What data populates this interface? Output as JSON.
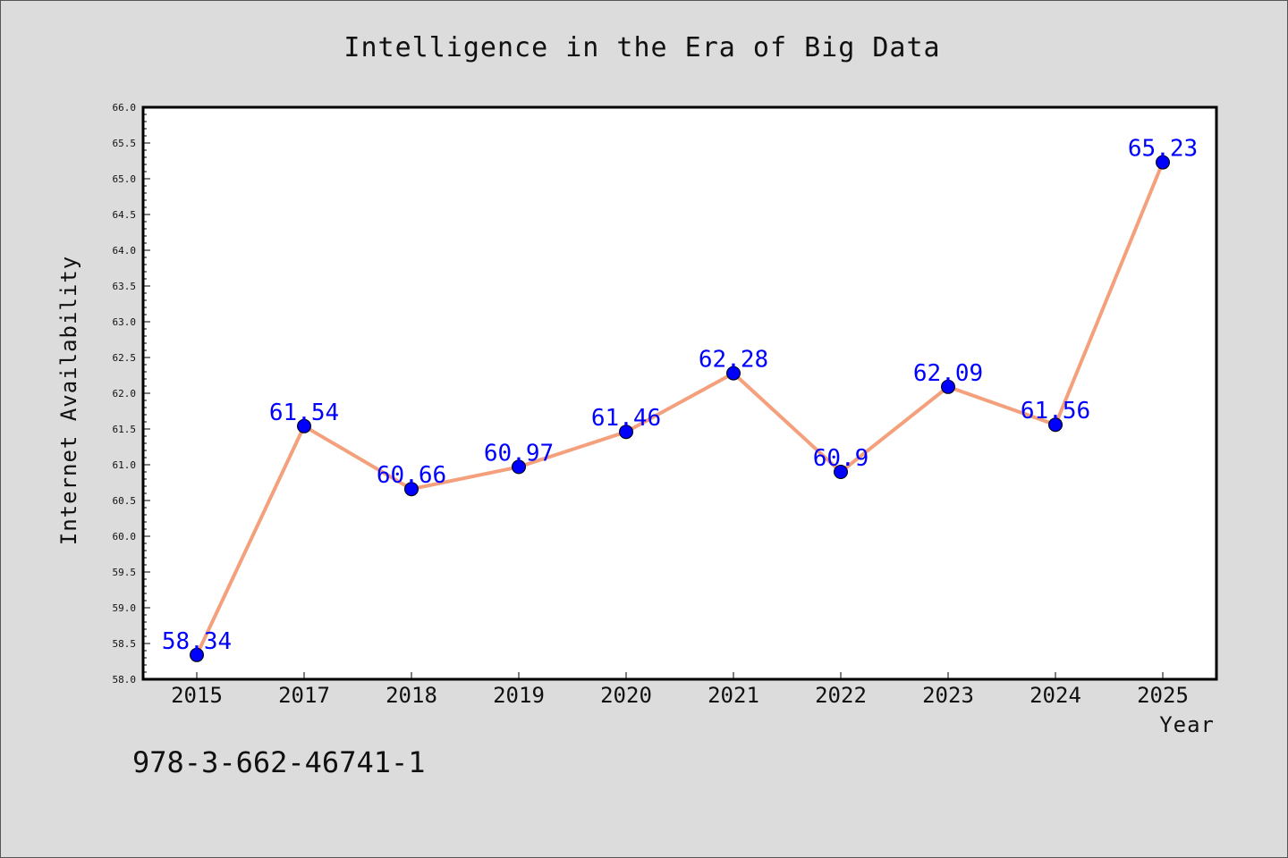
{
  "chart_data": {
    "type": "line",
    "title": "Intelligence in the Era of Big Data",
    "xlabel": "Year",
    "ylabel": "Internet Availability",
    "categories": [
      "2015",
      "2017",
      "2018",
      "2019",
      "2020",
      "2021",
      "2022",
      "2023",
      "2024",
      "2025"
    ],
    "series": [
      {
        "values": [
          58.34,
          61.54,
          60.66,
          60.97,
          61.46,
          62.28,
          60.9,
          62.09,
          61.56,
          65.23
        ],
        "labels": [
          "58.34",
          "61.54",
          "60.66",
          "60.97",
          "61.46",
          "62.28",
          "60.9",
          "62.09",
          "61.56",
          "65.23"
        ]
      }
    ],
    "ylim": [
      58.0,
      66.0
    ],
    "yticks": [
      "58.0",
      "58.5",
      "59.0",
      "59.5",
      "60.0",
      "60.5",
      "61.0",
      "61.5",
      "62.0",
      "62.5",
      "63.0",
      "63.5",
      "64.0",
      "64.5",
      "65.0",
      "65.5",
      "66.0"
    ],
    "grid": false,
    "legend": "none",
    "colors": {
      "line": "#f4a07c",
      "marker": "#0000ff",
      "data_label": "#0000ff",
      "plot_background": "#ffffff",
      "figure_background": "#dcdcdc"
    }
  },
  "footnote": "978-3-662-46741-1"
}
